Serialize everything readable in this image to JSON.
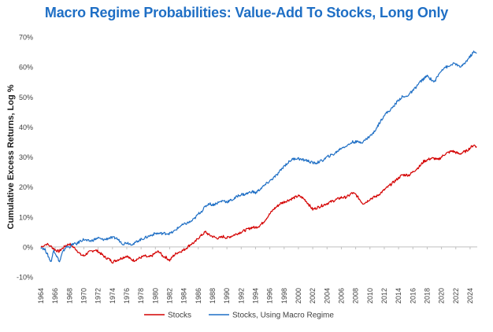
{
  "chart_data": {
    "type": "line",
    "title": "Macro Regime Probabilities: Value-Add To Stocks, Long Only",
    "xlabel": "",
    "ylabel": "Cumulative Excess Returns, Log %",
    "xlim": [
      1964,
      2025
    ],
    "ylim": [
      -10,
      70
    ],
    "x_ticks": [
      "1964",
      "1966",
      "1968",
      "1970",
      "1972",
      "1974",
      "1976",
      "1978",
      "1980",
      "1982",
      "1984",
      "1986",
      "1988",
      "1990",
      "1992",
      "1994",
      "1996",
      "1998",
      "2000",
      "2002",
      "2004",
      "2006",
      "2008",
      "2010",
      "2012",
      "2014",
      "2016",
      "2018",
      "2020",
      "2022",
      "2024"
    ],
    "y_ticks": [
      {
        "value": -10,
        "label": "-10%"
      },
      {
        "value": 0,
        "label": "0%"
      },
      {
        "value": 10,
        "label": "10%"
      },
      {
        "value": 20,
        "label": "20%"
      },
      {
        "value": 30,
        "label": "30%"
      },
      {
        "value": 40,
        "label": "40%"
      },
      {
        "value": 50,
        "label": "50%"
      },
      {
        "value": 60,
        "label": "60%"
      },
      {
        "value": 70,
        "label": "70%"
      }
    ],
    "grid": false,
    "legend_position": "bottom",
    "series": [
      {
        "name": "Stocks",
        "color": "#d40000",
        "points": [
          [
            1964,
            0
          ],
          [
            1964.8,
            1
          ],
          [
            1965.5,
            0
          ],
          [
            1966,
            -1
          ],
          [
            1966.5,
            -1.5
          ],
          [
            1967,
            -0.5
          ],
          [
            1967.5,
            0.5
          ],
          [
            1968,
            1
          ],
          [
            1968.5,
            0
          ],
          [
            1969,
            -1
          ],
          [
            1969.5,
            -2.5
          ],
          [
            1970,
            -3
          ],
          [
            1970.5,
            -2
          ],
          [
            1971,
            -1.5
          ],
          [
            1971.5,
            -1
          ],
          [
            1972,
            -1.5
          ],
          [
            1972.5,
            -2.5
          ],
          [
            1973,
            -3.5
          ],
          [
            1973.5,
            -4
          ],
          [
            1974,
            -5
          ],
          [
            1974.5,
            -4.5
          ],
          [
            1975,
            -4
          ],
          [
            1975.5,
            -3.5
          ],
          [
            1976,
            -3
          ],
          [
            1976.5,
            -4
          ],
          [
            1977,
            -4.5
          ],
          [
            1977.5,
            -4
          ],
          [
            1978,
            -3.5
          ],
          [
            1978.5,
            -3
          ],
          [
            1979,
            -3.5
          ],
          [
            1979.5,
            -3
          ],
          [
            1980,
            -2
          ],
          [
            1980.5,
            -1.5
          ],
          [
            1981,
            -3
          ],
          [
            1981.5,
            -3.5
          ],
          [
            1982,
            -4.5
          ],
          [
            1982.5,
            -3
          ],
          [
            1983,
            -2
          ],
          [
            1983.5,
            -1.5
          ],
          [
            1984,
            -1
          ],
          [
            1984.5,
            0
          ],
          [
            1985,
            1
          ],
          [
            1985.5,
            1.5
          ],
          [
            1986,
            3
          ],
          [
            1986.5,
            4
          ],
          [
            1987,
            5
          ],
          [
            1987.5,
            4
          ],
          [
            1988,
            3.5
          ],
          [
            1988.5,
            3
          ],
          [
            1989,
            3
          ],
          [
            1989.5,
            3.5
          ],
          [
            1990,
            3
          ],
          [
            1990.5,
            3.5
          ],
          [
            1991,
            4
          ],
          [
            1991.5,
            4.5
          ],
          [
            1992,
            5
          ],
          [
            1992.5,
            5.5
          ],
          [
            1993,
            6
          ],
          [
            1993.5,
            6.5
          ],
          [
            1994,
            6.5
          ],
          [
            1994.5,
            7
          ],
          [
            1995,
            8
          ],
          [
            1995.5,
            9.5
          ],
          [
            1996,
            11
          ],
          [
            1996.5,
            12.5
          ],
          [
            1997,
            13.5
          ],
          [
            1997.5,
            14.5
          ],
          [
            1998,
            15
          ],
          [
            1998.5,
            15.5
          ],
          [
            1999,
            16
          ],
          [
            1999.5,
            16.5
          ],
          [
            2000,
            17
          ],
          [
            2000.5,
            16.5
          ],
          [
            2001,
            15.5
          ],
          [
            2001.5,
            14
          ],
          [
            2002,
            12.5
          ],
          [
            2002.5,
            13
          ],
          [
            2003,
            13.5
          ],
          [
            2003.5,
            14
          ],
          [
            2004,
            14.5
          ],
          [
            2004.5,
            15
          ],
          [
            2005,
            15.5
          ],
          [
            2005.5,
            16
          ],
          [
            2006,
            16.5
          ],
          [
            2006.5,
            16.5
          ],
          [
            2007,
            17
          ],
          [
            2007.5,
            18
          ],
          [
            2008,
            17.5
          ],
          [
            2008.5,
            16
          ],
          [
            2009,
            14.5
          ],
          [
            2009.5,
            15
          ],
          [
            2010,
            16
          ],
          [
            2010.5,
            16.5
          ],
          [
            2011,
            17
          ],
          [
            2011.5,
            18
          ],
          [
            2012,
            19
          ],
          [
            2012.5,
            20
          ],
          [
            2013,
            21
          ],
          [
            2013.5,
            22
          ],
          [
            2014,
            23
          ],
          [
            2014.5,
            24
          ],
          [
            2015,
            24
          ],
          [
            2015.5,
            24
          ],
          [
            2016,
            25
          ],
          [
            2016.5,
            26
          ],
          [
            2017,
            27
          ],
          [
            2017.5,
            28.5
          ],
          [
            2018,
            29
          ],
          [
            2018.5,
            29.5
          ],
          [
            2019,
            29.5
          ],
          [
            2019.5,
            29
          ],
          [
            2020,
            30
          ],
          [
            2020.5,
            31
          ],
          [
            2021,
            31.5
          ],
          [
            2021.5,
            32
          ],
          [
            2022,
            31.5
          ],
          [
            2022.5,
            31
          ],
          [
            2023,
            31.5
          ],
          [
            2023.5,
            32
          ],
          [
            2024,
            33
          ],
          [
            2024.5,
            34
          ],
          [
            2024.9,
            33.5
          ]
        ]
      },
      {
        "name": "Stocks, Using Macro Regime",
        "color": "#1f6fc5",
        "points": [
          [
            1964,
            0
          ],
          [
            1964.6,
            -1
          ],
          [
            1965,
            -3
          ],
          [
            1965.4,
            -5
          ],
          [
            1965.8,
            -1
          ],
          [
            1966.2,
            -3
          ],
          [
            1966.6,
            -5
          ],
          [
            1967,
            -2
          ],
          [
            1967.5,
            0
          ],
          [
            1968,
            0
          ],
          [
            1968.5,
            1
          ],
          [
            1969,
            1
          ],
          [
            1969.5,
            2
          ],
          [
            1970,
            2.5
          ],
          [
            1970.5,
            2
          ],
          [
            1971,
            2
          ],
          [
            1971.5,
            2.5
          ],
          [
            1972,
            3
          ],
          [
            1972.5,
            2.5
          ],
          [
            1973,
            2.5
          ],
          [
            1973.5,
            3
          ],
          [
            1974,
            3
          ],
          [
            1974.5,
            3
          ],
          [
            1975,
            2
          ],
          [
            1975.5,
            1
          ],
          [
            1976,
            1.5
          ],
          [
            1976.5,
            1
          ],
          [
            1977,
            1
          ],
          [
            1977.5,
            2
          ],
          [
            1978,
            2.5
          ],
          [
            1978.5,
            3
          ],
          [
            1979,
            3.5
          ],
          [
            1979.5,
            4
          ],
          [
            1980,
            4.5
          ],
          [
            1980.5,
            4.5
          ],
          [
            1981,
            4.5
          ],
          [
            1981.5,
            4.5
          ],
          [
            1982,
            4.5
          ],
          [
            1982.5,
            5
          ],
          [
            1983,
            6
          ],
          [
            1983.5,
            7
          ],
          [
            1984,
            7.5
          ],
          [
            1984.5,
            8
          ],
          [
            1985,
            8.5
          ],
          [
            1985.5,
            9.5
          ],
          [
            1986,
            11
          ],
          [
            1986.5,
            12
          ],
          [
            1987,
            13.5
          ],
          [
            1987.5,
            14.5
          ],
          [
            1988,
            14
          ],
          [
            1988.5,
            14.5
          ],
          [
            1989,
            15
          ],
          [
            1989.5,
            15.5
          ],
          [
            1990,
            15
          ],
          [
            1990.5,
            15.5
          ],
          [
            1991,
            16
          ],
          [
            1991.5,
            17
          ],
          [
            1992,
            17.5
          ],
          [
            1992.5,
            17.5
          ],
          [
            1993,
            18
          ],
          [
            1993.5,
            18.5
          ],
          [
            1994,
            18
          ],
          [
            1994.5,
            19
          ],
          [
            1995,
            20
          ],
          [
            1995.5,
            21
          ],
          [
            1996,
            22
          ],
          [
            1996.5,
            23
          ],
          [
            1997,
            24
          ],
          [
            1997.5,
            25.5
          ],
          [
            1998,
            27
          ],
          [
            1998.5,
            28
          ],
          [
            1999,
            29
          ],
          [
            1999.5,
            29.5
          ],
          [
            2000,
            29.5
          ],
          [
            2000.5,
            29
          ],
          [
            2001,
            29
          ],
          [
            2001.5,
            28.5
          ],
          [
            2002,
            28
          ],
          [
            2002.5,
            28
          ],
          [
            2003,
            28.5
          ],
          [
            2003.5,
            29
          ],
          [
            2004,
            30
          ],
          [
            2004.5,
            30.5
          ],
          [
            2005,
            31
          ],
          [
            2005.5,
            32
          ],
          [
            2006,
            33
          ],
          [
            2006.5,
            33.5
          ],
          [
            2007,
            34
          ],
          [
            2007.5,
            35
          ],
          [
            2008,
            35
          ],
          [
            2008.5,
            35
          ],
          [
            2009,
            35
          ],
          [
            2009.5,
            36
          ],
          [
            2010,
            37
          ],
          [
            2010.5,
            38
          ],
          [
            2011,
            40
          ],
          [
            2011.5,
            42
          ],
          [
            2012,
            44
          ],
          [
            2012.5,
            45
          ],
          [
            2013,
            46
          ],
          [
            2013.5,
            47.5
          ],
          [
            2014,
            49
          ],
          [
            2014.5,
            50
          ],
          [
            2015,
            50
          ],
          [
            2015.5,
            51
          ],
          [
            2016,
            52
          ],
          [
            2016.5,
            53.5
          ],
          [
            2017,
            55
          ],
          [
            2017.5,
            56
          ],
          [
            2018,
            57
          ],
          [
            2018.5,
            56
          ],
          [
            2019,
            55
          ],
          [
            2019.5,
            57
          ],
          [
            2020,
            59
          ],
          [
            2020.5,
            60
          ],
          [
            2021,
            60
          ],
          [
            2021.5,
            61
          ],
          [
            2022,
            61
          ],
          [
            2022.5,
            60
          ],
          [
            2023,
            60.5
          ],
          [
            2023.5,
            62
          ],
          [
            2024,
            63.5
          ],
          [
            2024.5,
            65
          ],
          [
            2024.9,
            64.5
          ]
        ]
      }
    ]
  }
}
